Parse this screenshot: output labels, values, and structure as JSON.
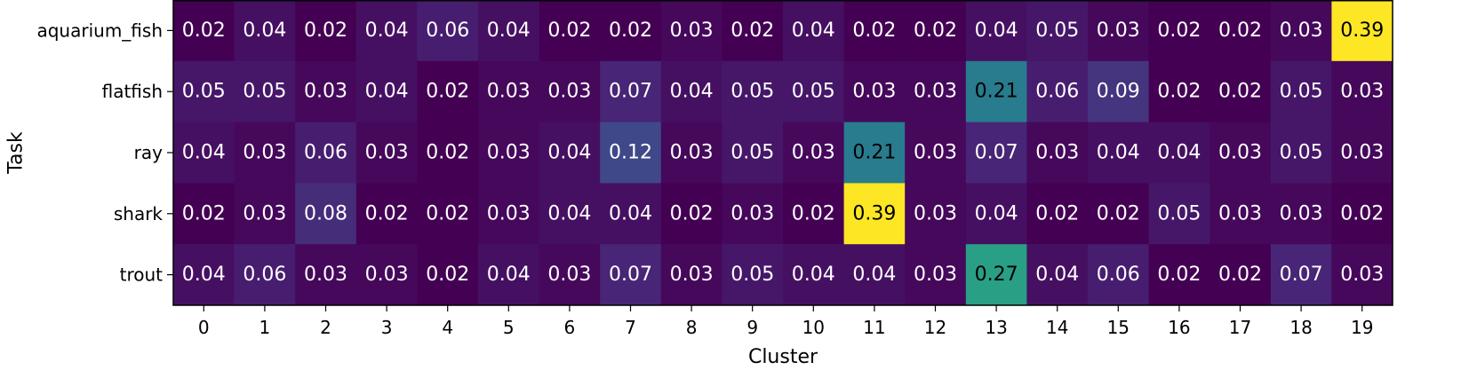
{
  "chart_data": {
    "type": "heatmap",
    "title": "",
    "xlabel": "Cluster",
    "ylabel": "Task",
    "x_categories": [
      "0",
      "1",
      "2",
      "3",
      "4",
      "5",
      "6",
      "7",
      "8",
      "9",
      "10",
      "11",
      "12",
      "13",
      "14",
      "15",
      "16",
      "17",
      "18",
      "19"
    ],
    "y_categories": [
      "aquarium_fish",
      "flatfish",
      "ray",
      "shark",
      "trout"
    ],
    "values": [
      [
        0.02,
        0.04,
        0.02,
        0.04,
        0.06,
        0.04,
        0.02,
        0.02,
        0.03,
        0.02,
        0.04,
        0.02,
        0.02,
        0.04,
        0.05,
        0.03,
        0.02,
        0.02,
        0.03,
        0.39
      ],
      [
        0.05,
        0.05,
        0.03,
        0.04,
        0.02,
        0.03,
        0.03,
        0.07,
        0.04,
        0.05,
        0.05,
        0.03,
        0.03,
        0.21,
        0.06,
        0.09,
        0.02,
        0.02,
        0.05,
        0.03
      ],
      [
        0.04,
        0.03,
        0.06,
        0.03,
        0.02,
        0.03,
        0.04,
        0.12,
        0.03,
        0.05,
        0.03,
        0.21,
        0.03,
        0.07,
        0.03,
        0.04,
        0.04,
        0.03,
        0.05,
        0.03
      ],
      [
        0.02,
        0.03,
        0.08,
        0.02,
        0.02,
        0.03,
        0.04,
        0.04,
        0.02,
        0.03,
        0.02,
        0.39,
        0.03,
        0.04,
        0.02,
        0.02,
        0.05,
        0.03,
        0.03,
        0.02
      ],
      [
        0.04,
        0.06,
        0.03,
        0.03,
        0.02,
        0.04,
        0.03,
        0.07,
        0.03,
        0.05,
        0.04,
        0.04,
        0.03,
        0.27,
        0.04,
        0.06,
        0.02,
        0.02,
        0.07,
        0.03
      ]
    ],
    "colormap": "viridis",
    "value_range": [
      0.02,
      0.39
    ]
  }
}
